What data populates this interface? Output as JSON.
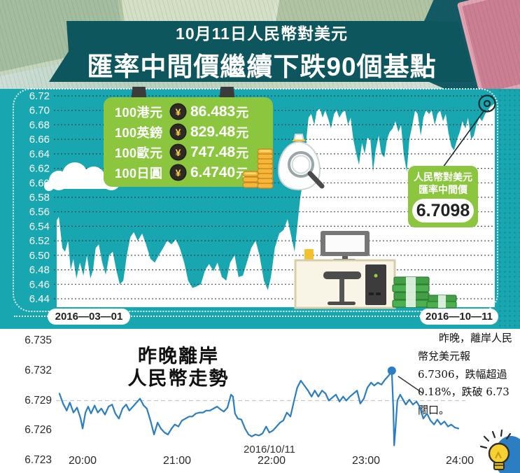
{
  "header": {
    "subtitle": "10月11日人民幣對美元",
    "title": "匯率中間價繼續下跌90個基點"
  },
  "rates_panel": {
    "rows": [
      {
        "label": "100港元",
        "badge": "¥",
        "value": "86.483",
        "suffix": "元"
      },
      {
        "label": "100英鎊",
        "badge": "¥",
        "value": "829.48",
        "suffix": "元"
      },
      {
        "label": "100歐元",
        "badge": "¥",
        "value": "747.48",
        "suffix": "元"
      },
      {
        "label": "100日圓",
        "badge": "¥",
        "value": "6.4740",
        "suffix": "元"
      }
    ]
  },
  "midpoint_callout": {
    "line1": "人民幣對美元",
    "line2": "匯率中間價",
    "value": "6.7098"
  },
  "top_axis": {
    "start_date": "2016—03—01",
    "end_date": "2016—10—11"
  },
  "bottom_section": {
    "title_line1": "昨晚離岸",
    "title_line2": "人民幣走勢",
    "date_label": "2016/10/11",
    "note": "　　昨晚，離岸人民幣兌美元報 6.7306，跌幅超過 0.18%，跌破 6.73 關口。"
  },
  "colors": {
    "teal": "#18a6b0",
    "banner": "#0e565e",
    "green": "#8cc63f",
    "line_blue": "#2b7ec1",
    "coin_gold": "#f5b63a"
  },
  "chart_data": [
    {
      "type": "area",
      "name": "cny-usd-midpoint-daily",
      "series_label": "人民幣對美元匯率中間價",
      "x_start_label": "2016—03—01",
      "x_end_label": "2016—10—11",
      "ylim": [
        6.44,
        6.72
      ],
      "yticks": [
        "6.72",
        "6.70",
        "6.68",
        "6.66",
        "6.64",
        "6.62",
        "6.60",
        "6.58",
        "6.56",
        "6.54",
        "6.52",
        "6.50",
        "6.48",
        "6.46",
        "6.44"
      ],
      "grid": "horizontal-dotted",
      "end_value": "6.7098",
      "series": [
        {
          "name": "midpoint",
          "t": [
            0,
            0.005,
            0.013,
            0.019,
            0.026,
            0.032,
            0.038,
            0.045,
            0.053,
            0.061,
            0.069,
            0.077,
            0.083,
            0.089,
            0.096,
            0.104,
            0.112,
            0.12,
            0.128,
            0.136,
            0.144,
            0.152,
            0.16,
            0.168,
            0.176,
            0.185,
            0.195,
            0.204,
            0.214,
            0.224,
            0.233,
            0.243,
            0.252,
            0.262,
            0.272,
            0.281,
            0.291,
            0.3,
            0.31,
            0.319,
            0.329,
            0.339,
            0.348,
            0.358,
            0.367,
            0.377,
            0.387,
            0.396,
            0.406,
            0.415,
            0.425,
            0.434,
            0.444,
            0.454,
            0.463,
            0.473,
            0.482,
            0.489,
            0.498,
            0.508,
            0.518,
            0.527,
            0.534,
            0.543,
            0.55,
            0.556,
            0.562,
            0.569,
            0.575,
            0.581,
            0.588,
            0.594,
            0.601,
            0.607,
            0.613,
            0.62,
            0.626,
            0.633,
            0.639,
            0.645,
            0.652,
            0.658,
            0.665,
            0.671,
            0.677,
            0.684,
            0.69,
            0.697,
            0.703,
            0.709,
            0.716,
            0.722,
            0.728,
            0.735,
            0.741,
            0.748,
            0.754,
            0.76,
            0.767,
            0.773,
            0.78,
            0.786,
            0.792,
            0.799,
            0.805,
            0.812,
            0.818,
            0.824,
            0.831,
            0.837,
            0.843,
            0.85,
            0.856,
            0.863,
            0.869,
            0.875,
            0.882,
            0.888,
            0.894,
            0.901,
            0.907,
            0.914,
            0.92,
            0.926,
            0.933,
            0.939,
            0.946,
            0.952,
            0.958,
            0.965,
            0.971,
            0.978,
            0.984,
            0.99,
            1
          ],
          "v": [
            6.548,
            6.553,
            6.51,
            6.505,
            6.52,
            6.48,
            6.495,
            6.468,
            6.49,
            6.472,
            6.5,
            6.468,
            6.48,
            6.51,
            6.515,
            6.49,
            6.473,
            6.5,
            6.505,
            6.48,
            6.46,
            6.465,
            6.5,
            6.525,
            6.532,
            6.52,
            6.53,
            6.515,
            6.495,
            6.49,
            6.5,
            6.51,
            6.52,
            6.515,
            6.522,
            6.51,
            6.49,
            6.465,
            6.455,
            6.457,
            6.46,
            6.48,
            6.488,
            6.478,
            6.49,
            6.47,
            6.465,
            6.49,
            6.5,
            6.47,
            6.472,
            6.49,
            6.51,
            6.52,
            6.5,
            6.465,
            6.452,
            6.47,
            6.51,
            6.53,
            6.535,
            6.55,
            6.53,
            6.505,
            6.545,
            6.58,
            6.6,
            6.655,
            6.69,
            6.695,
            6.68,
            6.7,
            6.702,
            6.69,
            6.7,
            6.688,
            6.675,
            6.695,
            6.7,
            6.69,
            6.697,
            6.7,
            6.68,
            6.69,
            6.66,
            6.64,
            6.625,
            6.655,
            6.64,
            6.662,
            6.66,
            6.615,
            6.645,
            6.665,
            6.64,
            6.635,
            6.66,
            6.67,
            6.675,
            6.685,
            6.67,
            6.68,
            6.64,
            6.615,
            6.66,
            6.68,
            6.7,
            6.695,
            6.665,
            6.69,
            6.7,
            6.695,
            6.7,
            6.68,
            6.695,
            6.7,
            6.685,
            6.695,
            6.67,
            6.65,
            6.645,
            6.66,
            6.67,
            6.685,
            6.675,
            6.69,
            6.66,
            6.665,
            6.68,
            6.69,
            6.685,
            6.695,
            6.7,
            6.705,
            6.7098
          ]
        }
      ]
    },
    {
      "type": "line",
      "name": "offshore-cny-overnight",
      "title": "昨晚離岸人民幣走勢",
      "x_date_label": "2016/10/11",
      "xticks": [
        "20:00",
        "21:00",
        "22:00",
        "23:00",
        "24:00"
      ],
      "ylim": [
        6.723,
        6.735
      ],
      "yticks": [
        "6.735",
        "6.732",
        "6.729",
        "6.726",
        "6.723"
      ],
      "gridline_value": 6.729,
      "line_color": "#2b7ec1",
      "marker": {
        "t": 0.833,
        "v": 6.732
      },
      "series": [
        {
          "name": "offshore-cny-usd",
          "t": [
            0,
            0.009,
            0.018,
            0.026,
            0.035,
            0.044,
            0.053,
            0.058,
            0.065,
            0.072,
            0.079,
            0.088,
            0.096,
            0.105,
            0.114,
            0.123,
            0.132,
            0.14,
            0.149,
            0.158,
            0.167,
            0.175,
            0.184,
            0.193,
            0.202,
            0.211,
            0.219,
            0.228,
            0.237,
            0.246,
            0.254,
            0.263,
            0.272,
            0.281,
            0.289,
            0.298,
            0.307,
            0.316,
            0.325,
            0.333,
            0.342,
            0.351,
            0.36,
            0.368,
            0.377,
            0.386,
            0.395,
            0.404,
            0.412,
            0.421,
            0.43,
            0.435,
            0.44,
            0.447,
            0.456,
            0.465,
            0.474,
            0.482,
            0.491,
            0.5,
            0.509,
            0.518,
            0.526,
            0.535,
            0.544,
            0.553,
            0.561,
            0.57,
            0.579,
            0.588,
            0.596,
            0.605,
            0.614,
            0.623,
            0.632,
            0.64,
            0.649,
            0.658,
            0.667,
            0.675,
            0.684,
            0.693,
            0.702,
            0.711,
            0.719,
            0.728,
            0.737,
            0.746,
            0.754,
            0.763,
            0.772,
            0.781,
            0.789,
            0.798,
            0.807,
            0.816,
            0.825,
            0.833,
            0.837,
            0.839,
            0.842,
            0.847,
            0.854,
            0.861,
            0.868,
            0.877,
            0.886,
            0.895,
            0.904,
            0.912,
            0.921,
            0.93,
            0.939,
            0.947,
            0.956,
            0.965,
            0.974,
            0.982,
            0.991,
            1
          ],
          "v": [
            6.7297,
            6.7287,
            6.728,
            6.7288,
            6.7278,
            6.7283,
            6.7272,
            6.7262,
            6.7278,
            6.7284,
            6.7277,
            6.7285,
            6.7278,
            6.7282,
            6.7276,
            6.7284,
            6.7286,
            6.7277,
            6.7272,
            6.7282,
            6.7286,
            6.728,
            6.7284,
            6.7288,
            6.7292,
            6.7285,
            6.7282,
            6.727,
            6.7256,
            6.7268,
            6.7262,
            6.7258,
            6.7256,
            6.7262,
            6.7266,
            6.7264,
            6.727,
            6.7272,
            6.7274,
            6.7274,
            6.7277,
            6.7278,
            6.7278,
            6.728,
            6.728,
            6.7282,
            6.7284,
            6.7281,
            6.7279,
            6.7283,
            6.7296,
            6.7294,
            6.7277,
            6.7272,
            6.7271,
            6.7262,
            6.7256,
            6.7254,
            6.7256,
            6.7255,
            6.7257,
            6.7264,
            6.7258,
            6.726,
            6.7264,
            6.7268,
            6.727,
            6.7278,
            6.7274,
            6.729,
            6.7303,
            6.731,
            6.7305,
            6.73,
            6.7294,
            6.73,
            6.7294,
            6.73,
            6.7297,
            6.729,
            6.7293,
            6.7296,
            6.7289,
            6.7294,
            6.729,
            6.7294,
            6.7297,
            6.73,
            6.7287,
            6.7292,
            6.7303,
            6.7308,
            6.7305,
            6.7308,
            6.7306,
            6.7311,
            6.7315,
            6.732,
            6.728,
            6.7245,
            6.726,
            6.729,
            6.7296,
            6.7291,
            6.7286,
            6.7291,
            6.7286,
            6.7289,
            6.7283,
            6.7272,
            6.7277,
            6.727,
            6.7266,
            6.7271,
            6.7266,
            6.7269,
            6.7264,
            6.7266,
            6.7263,
            6.7262
          ]
        }
      ]
    }
  ]
}
